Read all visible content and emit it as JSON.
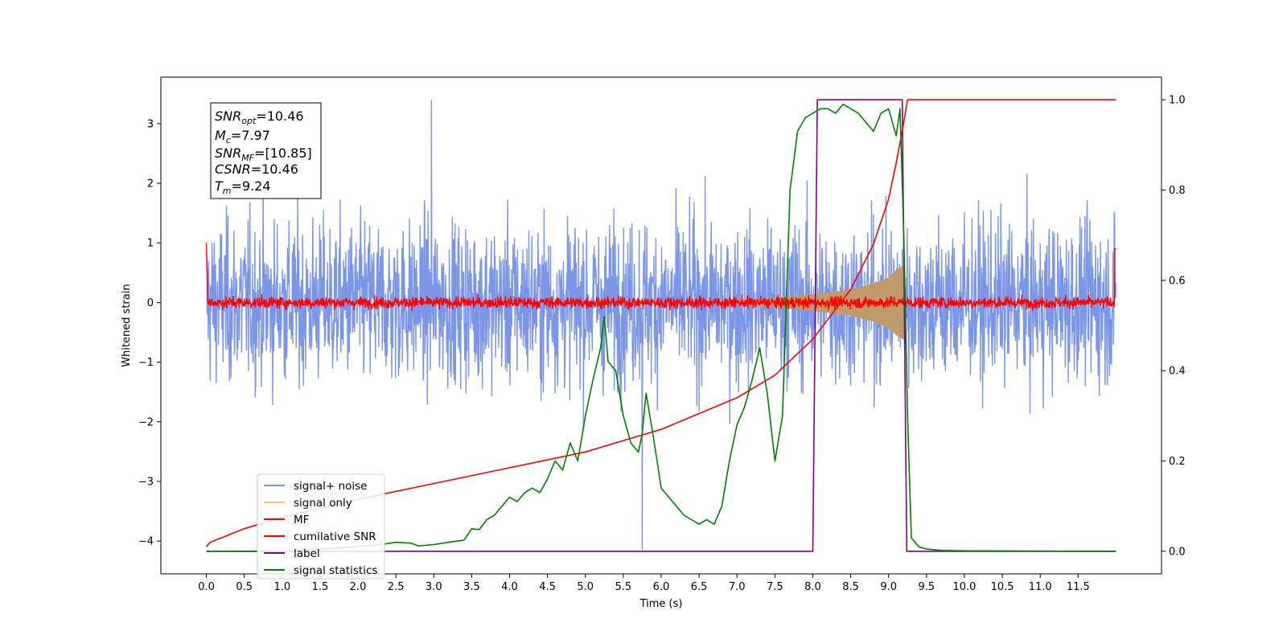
{
  "chart_data": {
    "type": "line",
    "xlabel": "Time (s)",
    "ylabel": "Whitened strain",
    "xlim": [
      -0.6,
      12.6
    ],
    "ylim_left": [
      -4.55,
      3.78
    ],
    "ylim_right": [
      -0.05,
      1.05
    ],
    "x_ticks": [
      0.0,
      0.5,
      1.0,
      1.5,
      2.0,
      2.5,
      3.0,
      3.5,
      4.0,
      4.5,
      5.0,
      5.5,
      6.0,
      6.5,
      7.0,
      7.5,
      8.0,
      8.5,
      9.0,
      9.5,
      10.0,
      10.5,
      11.0,
      11.5
    ],
    "x_tick_labels": [
      "0.0",
      "0.5",
      "1.0",
      "1.5",
      "2.0",
      "2.5",
      "3.0",
      "3.5",
      "4.0",
      "4.5",
      "5.0",
      "5.5",
      "6.0",
      "6.5",
      "7.0",
      "7.5",
      "8.0",
      "8.5",
      "9.0",
      "9.5",
      "10.0",
      "10.5",
      "11.0",
      "11.5"
    ],
    "y_left_ticks": [
      3,
      2,
      1,
      0,
      -1,
      -2,
      -3,
      -4
    ],
    "y_left_tick_labels": [
      "3",
      "2",
      "1",
      "0",
      "−1",
      "−2",
      "−3",
      "−4"
    ],
    "y_right_ticks": [
      1.0,
      0.8,
      0.6,
      0.4,
      0.2,
      0.0
    ],
    "y_right_tick_labels": [
      "1.0",
      "0.8",
      "0.6",
      "0.4",
      "0.2",
      "0.0"
    ],
    "grid": false,
    "legend_placement": "lower-left",
    "stats_box": {
      "snr_opt": {
        "base": "SNR",
        "sub": "opt",
        "value": "=10.46"
      },
      "mc": {
        "base": "M",
        "sub": "c",
        "value": "=7.97"
      },
      "snr_mf": {
        "base": "SNR",
        "sub": "MF",
        "value": "=[10.85]"
      },
      "csnr": {
        "base": "CSNR",
        "sub": "",
        "value": "=10.46"
      },
      "tm": {
        "base": "T",
        "sub": "m",
        "value": "=9.24"
      }
    },
    "series": [
      {
        "name": "signal+ noise",
        "axis": "left",
        "color": "#7b96e8",
        "style": "noise band, t 0.0–12.0 s, amplitude envelope about ±2.6 with spikes to +3.4 and −4.15"
      },
      {
        "name": "signal only",
        "axis": "left",
        "color": "#f5c77e",
        "chirp_envelope": {
          "t": [
            7.0,
            7.5,
            8.0,
            8.5,
            8.8,
            9.0,
            9.1,
            9.2,
            9.24
          ],
          "amp": [
            0.04,
            0.08,
            0.14,
            0.22,
            0.32,
            0.42,
            0.55,
            0.62,
            0.0
          ]
        }
      },
      {
        "name": "MF",
        "axis": "left",
        "color": "#ff0000",
        "style": "noise band around 0 with amplitude about ±0.2, t 0.0–12.0 s"
      },
      {
        "name": "cumilative SNR",
        "axis": "right",
        "color": "#ff0000",
        "x": [
          0.0,
          0.05,
          0.5,
          1.0,
          2.0,
          3.0,
          4.0,
          5.0,
          6.0,
          7.0,
          7.5,
          8.0,
          8.5,
          8.8,
          9.0,
          9.1,
          9.2,
          9.25,
          12.0
        ],
        "y": [
          0.01,
          0.02,
          0.05,
          0.075,
          0.115,
          0.15,
          0.185,
          0.22,
          0.27,
          0.34,
          0.39,
          0.47,
          0.58,
          0.68,
          0.78,
          0.86,
          0.95,
          1.0,
          1.0
        ]
      },
      {
        "name": "label",
        "axis": "right",
        "color": "#800080",
        "x": [
          0.0,
          8.0,
          8.06,
          9.18,
          9.24,
          12.0
        ],
        "y": [
          0.0,
          0.0,
          1.0,
          1.0,
          0.0,
          0.0
        ]
      },
      {
        "name": "signal statistics",
        "axis": "right",
        "color": "#008000",
        "x": [
          0.0,
          1.0,
          2.0,
          2.3,
          2.5,
          2.7,
          2.8,
          3.0,
          3.2,
          3.4,
          3.5,
          3.6,
          3.7,
          3.8,
          3.9,
          4.0,
          4.1,
          4.2,
          4.3,
          4.4,
          4.5,
          4.6,
          4.7,
          4.8,
          4.9,
          5.0,
          5.1,
          5.2,
          5.25,
          5.3,
          5.4,
          5.5,
          5.6,
          5.7,
          5.75,
          5.8,
          5.9,
          6.0,
          6.1,
          6.3,
          6.5,
          6.6,
          6.7,
          6.8,
          6.9,
          7.0,
          7.1,
          7.2,
          7.3,
          7.4,
          7.5,
          7.6,
          7.7,
          7.8,
          7.9,
          8.0,
          8.1,
          8.2,
          8.3,
          8.4,
          8.5,
          8.6,
          8.7,
          8.8,
          8.9,
          9.0,
          9.1,
          9.15,
          9.2,
          9.25,
          9.3,
          9.4,
          9.5,
          9.7,
          10.0,
          12.0
        ],
        "y": [
          0.0,
          0.0,
          0.01,
          0.015,
          0.02,
          0.018,
          0.012,
          0.015,
          0.02,
          0.025,
          0.05,
          0.048,
          0.07,
          0.08,
          0.1,
          0.12,
          0.11,
          0.13,
          0.14,
          0.13,
          0.16,
          0.2,
          0.18,
          0.24,
          0.2,
          0.3,
          0.38,
          0.45,
          0.52,
          0.42,
          0.4,
          0.3,
          0.24,
          0.22,
          0.26,
          0.35,
          0.25,
          0.14,
          0.12,
          0.08,
          0.06,
          0.07,
          0.06,
          0.1,
          0.2,
          0.28,
          0.32,
          0.38,
          0.45,
          0.35,
          0.2,
          0.3,
          0.8,
          0.93,
          0.96,
          0.97,
          0.98,
          0.98,
          0.97,
          0.99,
          0.98,
          0.97,
          0.95,
          0.93,
          0.97,
          0.98,
          0.92,
          0.98,
          0.7,
          0.3,
          0.03,
          0.01,
          0.005,
          0.002,
          0.001,
          0.0
        ]
      }
    ]
  }
}
